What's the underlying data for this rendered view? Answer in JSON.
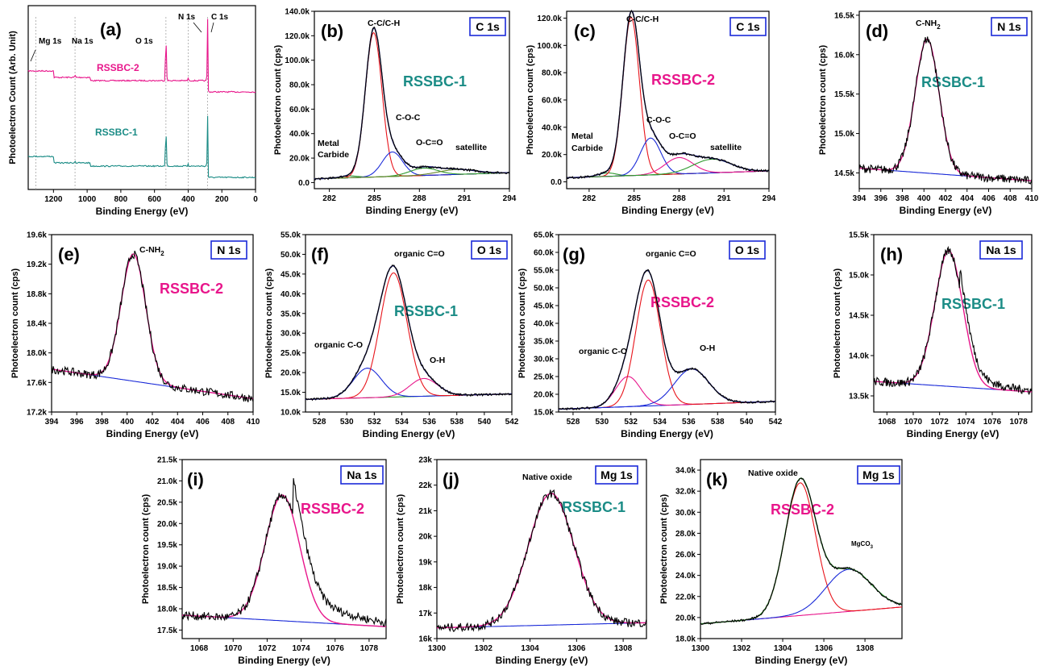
{
  "colors": {
    "black": "#000000",
    "magenta": "#e8168b",
    "teal": "#1b8c86",
    "red": "#e8141b",
    "blue": "#1a2ad8",
    "green": "#2e9a2e",
    "navy": "#1a1a78",
    "darkgreen": "#1e6b1e",
    "olive": "#6a8a2a",
    "boxblue": "#1a2ad8"
  },
  "chart_data": [
    {
      "id": "a",
      "type": "line",
      "label": "(a)",
      "xlabel": "Binding Energy (eV)",
      "ylabel": "Photoelectron Count (Arb. Unit)",
      "xlim": [
        1350,
        0
      ],
      "xticks": [
        "1200",
        "1000",
        "800",
        "600",
        "400",
        "200",
        "0"
      ],
      "yticks": [],
      "samples": [
        "RSSBC-2",
        "RSSBC-1"
      ],
      "peak_labels": [
        {
          "text": "Mg 1s",
          "x": 1304
        },
        {
          "text": "Na 1s",
          "x": 1072
        },
        {
          "text": "O 1s",
          "x": 532
        },
        {
          "text": "N 1s",
          "x": 400
        },
        {
          "text": "C 1s",
          "x": 285
        }
      ]
    },
    {
      "id": "b",
      "type": "line",
      "label": "(b)",
      "core": "C 1s",
      "sample": "RSSBC-1",
      "xlabel": "Binding Energy (eV)",
      "ylabel": "Photoelectron count (cps)",
      "xlim": [
        281,
        294
      ],
      "ylim": [
        -5,
        140
      ],
      "xticks": [
        "282",
        "285",
        "288",
        "291",
        "294"
      ],
      "yticks": [
        "0.0",
        "20.0k",
        "40.0k",
        "60.0k",
        "80.0k",
        "100.0k",
        "120.0k",
        "140.0k"
      ],
      "peaks": [
        {
          "name": "Metal Carbide",
          "center": 283.3,
          "height": 1.5,
          "fwhm": 1.4
        },
        {
          "name": "C-C/C-H",
          "center": 284.95,
          "height": 118,
          "fwhm": 1.3
        },
        {
          "name": "C-O-C",
          "center": 286.2,
          "height": 20,
          "fwhm": 1.6
        },
        {
          "name": "O-C=O",
          "center": 288.3,
          "height": 6,
          "fwhm": 2.2
        },
        {
          "name": "satellite",
          "center": 290.5,
          "height": 4,
          "fwhm": 3.0
        }
      ],
      "baseline": {
        "left": 3,
        "right": 8
      }
    },
    {
      "id": "c",
      "type": "line",
      "label": "(c)",
      "core": "C 1s",
      "sample": "RSSBC-2",
      "xlabel": "Binding Energy (eV)",
      "ylabel": "Photoelectron count (cps)",
      "xlim": [
        280.5,
        294
      ],
      "ylim": [
        -5,
        125
      ],
      "xticks": [
        "282",
        "285",
        "288",
        "291",
        "294"
      ],
      "yticks": [
        "0.0",
        "20.0k",
        "40.0k",
        "60.0k",
        "80.0k",
        "100.0k",
        "120.0k"
      ],
      "peaks": [
        {
          "name": "Metal Carbide",
          "center": 283.2,
          "height": 2.5,
          "fwhm": 1.4
        },
        {
          "name": "C-C/C-H",
          "center": 284.8,
          "height": 116,
          "fwhm": 1.3
        },
        {
          "name": "C-O-C",
          "center": 286.1,
          "height": 27,
          "fwhm": 1.6
        },
        {
          "name": "O-C=O",
          "center": 288.0,
          "height": 12,
          "fwhm": 2.2
        },
        {
          "name": "satellite",
          "center": 290.2,
          "height": 10,
          "fwhm": 3.0
        }
      ],
      "baseline": {
        "left": 3,
        "right": 8
      }
    },
    {
      "id": "d",
      "type": "line",
      "label": "(d)",
      "core": "N 1s",
      "sample": "RSSBC-1",
      "xlabel": "Binding Energy (eV)",
      "ylabel": "Photoelectron count (cps)",
      "xlim": [
        394,
        410
      ],
      "ylim": [
        14.3,
        16.55
      ],
      "xticks": [
        "394",
        "396",
        "398",
        "400",
        "402",
        "404",
        "406",
        "408",
        "410"
      ],
      "yticks": [
        "14.5k",
        "15.0k",
        "15.5k",
        "16.0k",
        "16.5k"
      ],
      "peaks": [
        {
          "name": "C-NH2",
          "center": 400.3,
          "height": 1.7,
          "fwhm": 2.6
        }
      ],
      "baseline": {
        "left": 14.56,
        "right": 14.4
      }
    },
    {
      "id": "e",
      "type": "line",
      "label": "(e)",
      "core": "N 1s",
      "sample": "RSSBC-2",
      "xlabel": "Binding Energy (eV)",
      "ylabel": "Photoelectron count (cps)",
      "xlim": [
        394,
        410
      ],
      "ylim": [
        17.2,
        19.6
      ],
      "xticks": [
        "394",
        "396",
        "398",
        "400",
        "402",
        "404",
        "406",
        "408",
        "410"
      ],
      "yticks": [
        "17.2k",
        "17.6k",
        "18.0k",
        "18.4k",
        "18.8k",
        "19.2k",
        "19.6k"
      ],
      "peaks": [
        {
          "name": "C-NH2",
          "center": 400.5,
          "height": 1.72,
          "fwhm": 2.3
        }
      ],
      "baseline": {
        "left": 17.78,
        "right": 17.38
      }
    },
    {
      "id": "f",
      "type": "line",
      "label": "(f)",
      "core": "O 1s",
      "sample": "RSSBC-1",
      "xlabel": "Binding Energy (eV)",
      "ylabel": "Photoelectron count (cps)",
      "xlim": [
        527,
        542
      ],
      "ylim": [
        10,
        55
      ],
      "xticks": [
        "528",
        "530",
        "532",
        "534",
        "536",
        "538",
        "540",
        "542"
      ],
      "yticks": [
        "10.0k",
        "15.0k",
        "20.0k",
        "25.0k",
        "30.0k",
        "35.0k",
        "40.0k",
        "45.0k",
        "50.0k",
        "55.0k"
      ],
      "peaks": [
        {
          "name": "organic C-O",
          "center": 531.5,
          "height": 7.5,
          "fwhm": 2.4
        },
        {
          "name": "organic C=O",
          "center": 533.4,
          "height": 31.5,
          "fwhm": 2.3
        },
        {
          "name": "O-H",
          "center": 535.6,
          "height": 4.5,
          "fwhm": 2.4
        }
      ],
      "baseline": {
        "left": 13.2,
        "right": 14.6
      }
    },
    {
      "id": "g",
      "type": "line",
      "label": "(g)",
      "core": "O 1s",
      "sample": "RSSBC-2",
      "xlabel": "Binding Energy (eV)",
      "ylabel": "Photoelectron count (cps)",
      "xlim": [
        527,
        542
      ],
      "ylim": [
        15,
        65
      ],
      "xticks": [
        "528",
        "530",
        "532",
        "534",
        "536",
        "538",
        "540",
        "542"
      ],
      "yticks": [
        "15.0k",
        "20.0k",
        "25.0k",
        "30.0k",
        "35.0k",
        "40.0k",
        "45.0k",
        "50.0k",
        "55.0k",
        "60.0k",
        "65.0k"
      ],
      "peaks": [
        {
          "name": "organic C-O",
          "center": 531.8,
          "height": 8.5,
          "fwhm": 2.0
        },
        {
          "name": "organic C=O",
          "center": 533.2,
          "height": 35.5,
          "fwhm": 2.0
        },
        {
          "name": "O-H",
          "center": 536.2,
          "height": 10,
          "fwhm": 2.8
        }
      ],
      "baseline": {
        "left": 15.8,
        "right": 18
      }
    },
    {
      "id": "h",
      "type": "line",
      "label": "(h)",
      "core": "Na 1s",
      "sample": "RSSBC-1",
      "xlabel": "Binding Energy (eV)",
      "ylabel": "Photoelectron count (cps)",
      "xlim": [
        1067,
        1079
      ],
      "ylim": [
        13.3,
        15.5
      ],
      "xticks": [
        "1068",
        "1070",
        "1072",
        "1074",
        "1076",
        "1078"
      ],
      "yticks": [
        "13.5k",
        "14.0k",
        "14.5k",
        "15.0k",
        "15.5k"
      ],
      "peaks": [
        {
          "name": "",
          "center": 1072.7,
          "height": 1.68,
          "fwhm": 2.5
        }
      ],
      "baseline": {
        "left": 13.68,
        "right": 13.55
      }
    },
    {
      "id": "i",
      "type": "line",
      "label": "(i)",
      "core": "Na 1s",
      "sample": "RSSBC-2",
      "xlabel": "Binding Energy (eV)",
      "ylabel": "Photoelectron count (cps)",
      "xlim": [
        1067,
        1079
      ],
      "ylim": [
        17.3,
        21.5
      ],
      "xticks": [
        "1068",
        "1070",
        "1072",
        "1074",
        "1076",
        "1078"
      ],
      "yticks": [
        "17.5k",
        "18.0k",
        "18.5k",
        "19.0k",
        "19.5k",
        "20.0k",
        "20.5k",
        "21.0k",
        "21.5k"
      ],
      "peaks": [
        {
          "name": "",
          "center": 1072.9,
          "height": 2.95,
          "fwhm": 2.4
        }
      ],
      "baseline": {
        "left": 17.85,
        "right": 17.58
      }
    },
    {
      "id": "j",
      "type": "line",
      "label": "(j)",
      "core": "Mg 1s",
      "sample": "RSSBC-1",
      "xlabel": "Binding Energy (eV)",
      "ylabel": "Photoelectron count (cps)",
      "xlim": [
        1300,
        1309
      ],
      "ylim": [
        16,
        23
      ],
      "xticks": [
        "1300",
        "1302",
        "1304",
        "1306",
        "1308"
      ],
      "yticks": [
        "16k",
        "17k",
        "18k",
        "19k",
        "20k",
        "21k",
        "22k",
        "23k"
      ],
      "peaks": [
        {
          "name": "Native oxide",
          "center": 1304.9,
          "height": 5.15,
          "fwhm": 2.3
        }
      ],
      "baseline": {
        "left": 16.42,
        "right": 16.62
      }
    },
    {
      "id": "k",
      "type": "line",
      "label": "(k)",
      "core": "Mg 1s",
      "sample": "RSSBC-2",
      "xlabel": "Binding Energy (eV)",
      "ylabel": "Photoelectron count (cps)",
      "xlim": [
        1300,
        1309.8
      ],
      "ylim": [
        18,
        35
      ],
      "xticks": [
        "1300",
        "1302",
        "1304",
        "1306",
        "1308"
      ],
      "yticks": [
        "18.0k",
        "20.0k",
        "22.0k",
        "24.0k",
        "26.0k",
        "28.0k",
        "30.0k",
        "32.0k",
        "34.0k"
      ],
      "peaks": [
        {
          "name": "Native oxide",
          "center": 1304.85,
          "height": 12.6,
          "fwhm": 1.75
        },
        {
          "name": "MgCO3",
          "center": 1307.2,
          "height": 4.0,
          "fwhm": 2.6
        }
      ],
      "baseline": {
        "left": 19.4,
        "right": 21.0
      }
    }
  ],
  "text": {
    "a": {
      "rssbc2": "RSSBC-2",
      "rssbc1": "RSSBC-1"
    },
    "b": {
      "cc": "C-C/C-H",
      "coc": "C-O-C",
      "oco": "O-C=O",
      "sat": "satellite",
      "mc1": "Metal",
      "mc2": "Carbide"
    },
    "c": {
      "cc": "C-C/C-H",
      "coc": "C-O-C",
      "oco": "O-C=O",
      "sat": "satellite",
      "mc1": "Metal",
      "mc2": "Carbide"
    },
    "d": {
      "cnh": "C-NH"
    },
    "e": {
      "cnh": "C-NH"
    },
    "f": {
      "co": "organic C-O",
      "ceo": "organic C=O",
      "oh": "O-H"
    },
    "g": {
      "co": "organic C-O",
      "ceo": "organic C=O",
      "oh": "O-H"
    },
    "j": {
      "no": "Native oxide"
    },
    "k": {
      "no": "Native oxide",
      "mgco": "MgCO"
    },
    "sub2": "2",
    "sub3": "3"
  }
}
